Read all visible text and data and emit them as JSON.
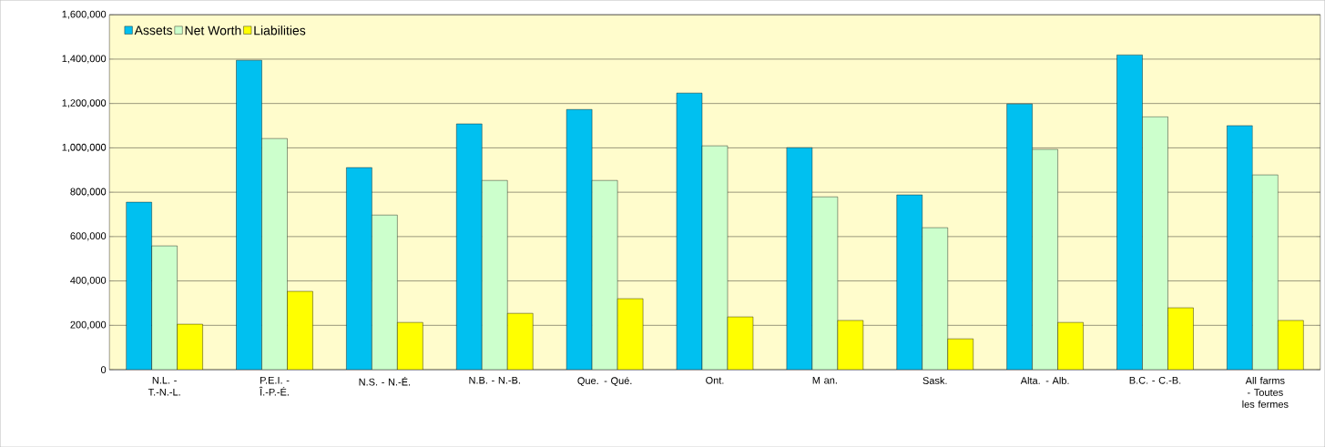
{
  "chart_data": {
    "type": "bar",
    "categories": [
      "N.L. - T.-N.-L.",
      "P.E.I. - Î.-P.-É.",
      "N.S. - N.-É.",
      "N.B. - N.-B.",
      "Que. - Qué.",
      "Ont.",
      "M an.",
      "Sask.",
      "Alta. - Alb.",
      "B.C. - C.-B.",
      "All farms - Toutes les fermes"
    ],
    "series": [
      {
        "name": "Assets",
        "color": "#00c0f0",
        "values": [
          755000,
          1395000,
          911000,
          1108000,
          1173000,
          1247000,
          1001000,
          788000,
          1198000,
          1419000,
          1100000
        ]
      },
      {
        "name": "Net Worth",
        "color": "#ccffcc",
        "values": [
          558000,
          1042000,
          697000,
          853000,
          853000,
          1009000,
          779000,
          640000,
          993000,
          1140000,
          878000
        ]
      },
      {
        "name": "Liabilities",
        "color": "#ffff00",
        "values": [
          205000,
          353000,
          213000,
          254000,
          320000,
          238000,
          222000,
          139000,
          213000,
          279000,
          222000
        ]
      }
    ],
    "ylim": [
      0,
      1600000
    ],
    "yticks": [
      0,
      {
        "value": 200000,
        "label": "200,000"
      },
      {
        "value": 400000,
        "label": "400,000"
      },
      {
        "value": 600000,
        "label": "600,000"
      },
      {
        "value": 800000,
        "label": "800,000"
      },
      {
        "value": 1000000,
        "label": "1,000,000"
      },
      {
        "value": 1200000,
        "label": "1,200,000"
      },
      {
        "value": 1400000,
        "label": "1,400,000"
      },
      {
        "value": 1600000,
        "label": "1,600,000"
      }
    ],
    "grid": "y",
    "legend": "top left"
  }
}
